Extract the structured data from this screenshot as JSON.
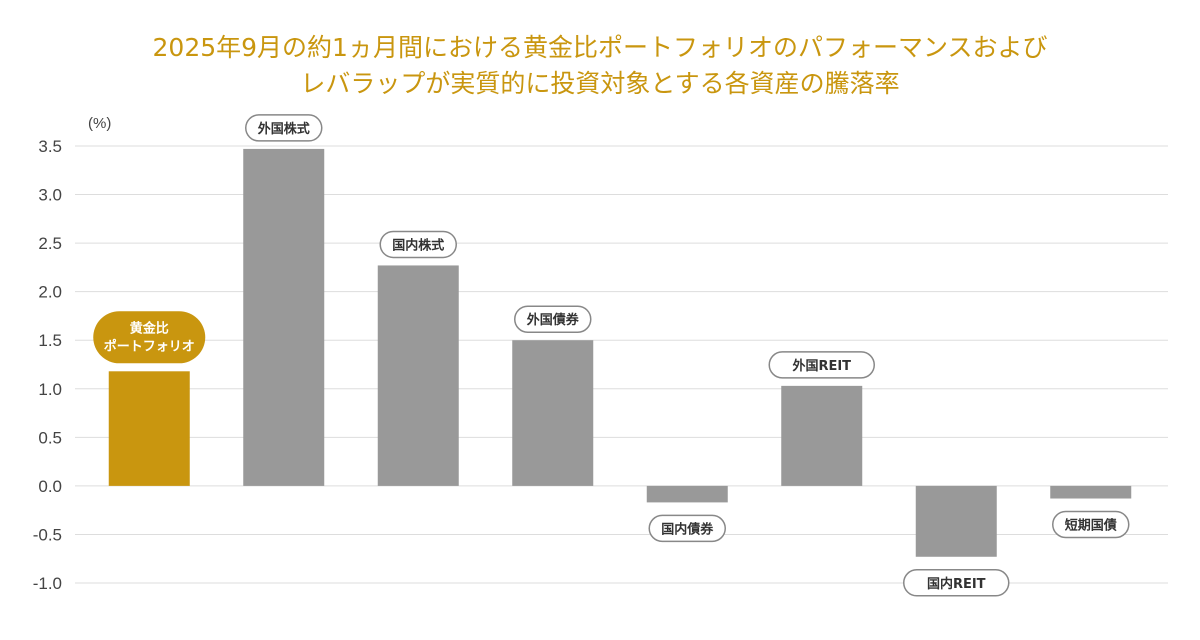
{
  "chart_data": {
    "type": "bar",
    "title_lines": [
      "2025年9月の約1ヵ月間における黄金比ポートフォリオのパフォーマンスおよび",
      "レバラップが実質的に投資対象とする各資産の騰落率"
    ],
    "unit": "(%)",
    "categories": [
      "黄金比ポートフォリオ",
      "外国株式",
      "国内株式",
      "外国債券",
      "国内債券",
      "外国REIT",
      "国内REIT",
      "短期国債"
    ],
    "display_labels": [
      [
        "黄金比",
        "ポートフォリオ"
      ],
      [
        "外国株式"
      ],
      [
        "国内株式"
      ],
      [
        "外国債券"
      ],
      [
        "国内債券"
      ],
      [
        "外国REIT"
      ],
      [
        "国内REIT"
      ],
      [
        "短期国債"
      ]
    ],
    "values": [
      1.18,
      3.47,
      2.27,
      1.5,
      -0.17,
      1.03,
      -0.73,
      -0.13
    ],
    "highlight_index": 0,
    "ylim": [
      -1.0,
      3.5
    ],
    "yticks": [
      "3.5",
      "3.0",
      "2.5",
      "2.0",
      "1.5",
      "1.0",
      "0.5",
      "0.0",
      "-0.5",
      "-1.0"
    ],
    "ytick_values": [
      3.5,
      3.0,
      2.5,
      2.0,
      1.5,
      1.0,
      0.5,
      0.0,
      -0.5,
      -1.0
    ],
    "grid": true,
    "colors": {
      "highlight": "#c9960f",
      "bar": "#999999",
      "grid": "#dddddd",
      "title": "#c9960f"
    }
  }
}
